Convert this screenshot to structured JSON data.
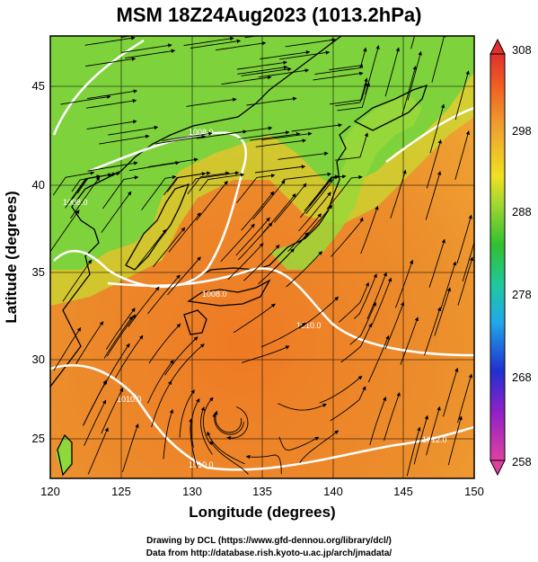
{
  "title": "MSM 18Z24Aug2023 (1013.2hPa)",
  "x_axis": {
    "label": "Longitude (degrees)",
    "ticks": [
      "120",
      "125",
      "130",
      "135",
      "140",
      "145",
      "150"
    ]
  },
  "y_axis": {
    "label": "Latitude  (degrees)",
    "ticks": [
      "25",
      "30",
      "35",
      "40",
      "45"
    ]
  },
  "colorbar": {
    "ticks": [
      "308",
      "298",
      "288",
      "278",
      "268",
      "258"
    ],
    "colors": [
      "#e0409a",
      "#8020c0",
      "#2040d0",
      "#20a0e0",
      "#20c8a0",
      "#30c830",
      "#a0e030",
      "#f0e020",
      "#f0a020",
      "#f06020",
      "#e03030"
    ]
  },
  "isobar_labels": [
    "1008.0",
    "1008.0",
    "1008.0",
    "1010.0",
    "1010.0",
    "1010.0",
    "1012.0"
  ],
  "colors": {
    "sea_warm": "#e88a2a",
    "land_cool": "#7ccf3a",
    "isobar": "#ffffff",
    "coast": "#000000"
  },
  "credits": {
    "line1": "Drawing by DCL (https://www.gfd-dennou.org/library/dcl/)",
    "line2": "Data from http://database.rish.kyoto-u.ac.jp/arch/jmadata/"
  }
}
